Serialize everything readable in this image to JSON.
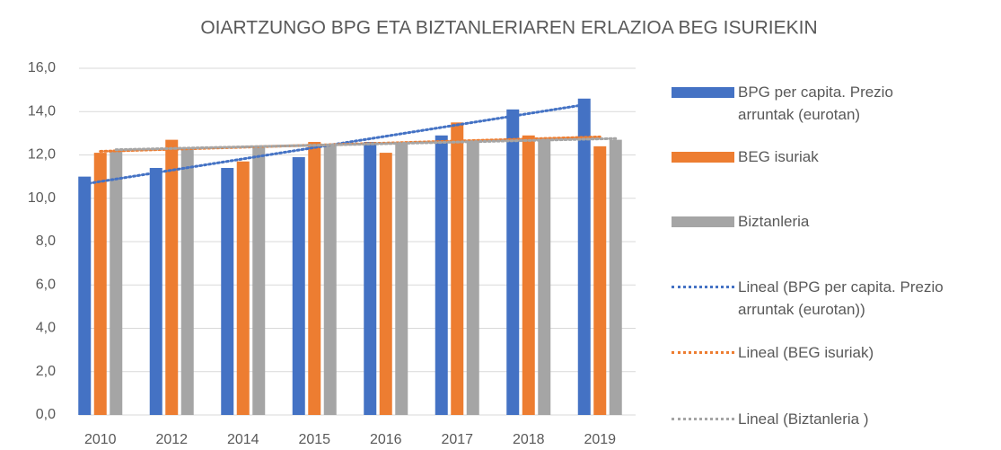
{
  "chart_data": {
    "type": "bar",
    "title": "OIARTZUNGO BPG ETA BIZTANLERIAREN ERLAZIOA BEG ISURIEKIN",
    "categories": [
      "2010",
      "2012",
      "2014",
      "2015",
      "2016",
      "2017",
      "2018",
      "2019"
    ],
    "series": [
      {
        "name": "BPG per capita. Prezio arruntak (eurotan)",
        "color": "#4472c4",
        "values": [
          11.0,
          11.4,
          11.4,
          11.9,
          12.6,
          12.9,
          14.1,
          14.6
        ],
        "trendline": "Lineal (BPG per capita. Prezio arruntak (eurotan))"
      },
      {
        "name": "BEG isuriak",
        "color": "#ed7d31",
        "values": [
          12.1,
          12.7,
          11.7,
          12.6,
          12.1,
          13.5,
          12.9,
          12.4
        ],
        "trendline": "Lineal (BEG isuriak)"
      },
      {
        "name": "Biztanleria",
        "color": "#a5a5a5",
        "values": [
          12.2,
          12.3,
          12.4,
          12.5,
          12.6,
          12.6,
          12.7,
          12.7
        ],
        "trendline": "Lineal (Biztanleria )"
      }
    ],
    "ylim": [
      0,
      16
    ],
    "yticks": [
      {
        "value": 0,
        "label": "0,0"
      },
      {
        "value": 2,
        "label": "2,0"
      },
      {
        "value": 4,
        "label": "4,0"
      },
      {
        "value": 6,
        "label": "6,0"
      },
      {
        "value": 8,
        "label": "8,0"
      },
      {
        "value": 10,
        "label": "10,0"
      },
      {
        "value": 12,
        "label": "12,0"
      },
      {
        "value": 14,
        "label": "14,0"
      },
      {
        "value": 16,
        "label": "16,0"
      }
    ],
    "grid": true,
    "legend": "right"
  }
}
